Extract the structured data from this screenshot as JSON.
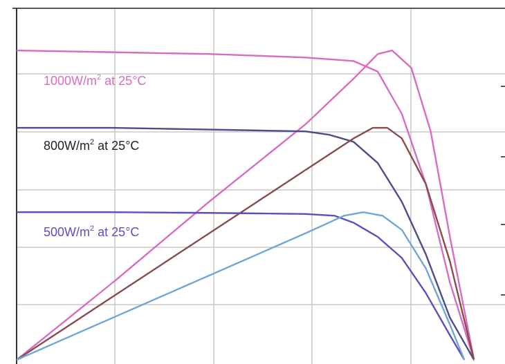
{
  "chart_data": {
    "type": "line",
    "title": "",
    "xlabel": "",
    "ylabel": "",
    "grid": true,
    "xlim": [
      0,
      1.0
    ],
    "ylim": [
      0,
      1.0
    ],
    "series": [
      {
        "name": "1000W/m2 at 25°C",
        "curve": "I-V",
        "color": "#d86bc2",
        "x": [
          0.0,
          0.2,
          0.4,
          0.6,
          0.7,
          0.75,
          0.8,
          0.85,
          0.9,
          0.95
        ],
        "y": [
          0.88,
          0.875,
          0.87,
          0.86,
          0.85,
          0.82,
          0.7,
          0.5,
          0.22,
          0.0
        ]
      },
      {
        "name": "1000W/m2 at 25°C",
        "curve": "P-V",
        "color": "#d86bc2",
        "x": [
          0.0,
          0.2,
          0.4,
          0.6,
          0.7,
          0.75,
          0.78,
          0.82,
          0.86,
          0.9,
          0.95
        ],
        "y": [
          0.0,
          0.22,
          0.45,
          0.67,
          0.8,
          0.87,
          0.88,
          0.83,
          0.65,
          0.35,
          0.0
        ]
      },
      {
        "name": "800W/m2 at 25°C",
        "curve": "I-V",
        "color": "#4c4c8c",
        "x": [
          0.0,
          0.2,
          0.4,
          0.6,
          0.65,
          0.7,
          0.75,
          0.8,
          0.85,
          0.9,
          0.95
        ],
        "y": [
          0.66,
          0.66,
          0.655,
          0.65,
          0.64,
          0.62,
          0.56,
          0.45,
          0.3,
          0.12,
          0.0
        ]
      },
      {
        "name": "800W/m2 at 25°C",
        "curve": "P-V",
        "color": "#8b4a4a",
        "x": [
          0.0,
          0.2,
          0.4,
          0.6,
          0.7,
          0.74,
          0.77,
          0.8,
          0.85,
          0.9,
          0.95
        ],
        "y": [
          0.0,
          0.18,
          0.36,
          0.54,
          0.63,
          0.66,
          0.66,
          0.63,
          0.5,
          0.28,
          0.0
        ]
      },
      {
        "name": "500W/m2 at 25°C",
        "curve": "I-V",
        "color": "#5a4fbf",
        "x": [
          0.0,
          0.2,
          0.4,
          0.6,
          0.66,
          0.7,
          0.75,
          0.8,
          0.85,
          0.9,
          0.93
        ],
        "y": [
          0.42,
          0.42,
          0.418,
          0.415,
          0.41,
          0.39,
          0.35,
          0.29,
          0.19,
          0.07,
          0.0
        ]
      },
      {
        "name": "500W/m2 at 25°C",
        "curve": "P-V",
        "color": "#6fa6d8",
        "x": [
          0.0,
          0.2,
          0.4,
          0.6,
          0.68,
          0.72,
          0.76,
          0.8,
          0.85,
          0.9,
          0.93
        ],
        "y": [
          0.0,
          0.12,
          0.24,
          0.36,
          0.41,
          0.42,
          0.41,
          0.37,
          0.26,
          0.1,
          0.0
        ]
      }
    ]
  },
  "labels": [
    {
      "pre": "1000W/m",
      "sup": "2",
      "post": " at 25°C",
      "color": "#d86bc2"
    },
    {
      "pre": "800W/m",
      "sup": "2",
      "post": " at 25°C",
      "color": "#222222"
    },
    {
      "pre": "500W/m",
      "sup": "2",
      "post": " at 25°C",
      "color": "#5a4fbf"
    }
  ]
}
